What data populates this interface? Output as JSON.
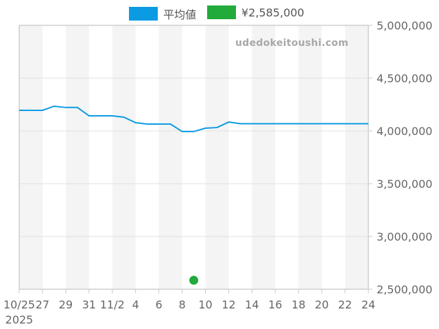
{
  "legend": {
    "items": [
      {
        "label": "平均値",
        "color": "#0a9be3"
      },
      {
        "label": "¥2,585,000",
        "color": "#22aa3a"
      }
    ]
  },
  "watermark": "udedokeitoushi.com",
  "chart_data": {
    "type": "line",
    "title": "",
    "xlabel": "",
    "ylabel": "",
    "x_tick_labels": [
      "10/25",
      "27",
      "29",
      "31",
      "11/2",
      "4",
      "6",
      "8",
      "10",
      "12",
      "14",
      "16",
      "18",
      "20",
      "22",
      "24"
    ],
    "x_year_label": "2025",
    "y_tick_labels": [
      "5,000,000",
      "4,500,000",
      "4,000,000",
      "3,500,000",
      "3,000,000",
      "2,500,000"
    ],
    "ylim": [
      2500000,
      5000000
    ],
    "xlim": [
      "2025-10-25",
      "2025-11-24"
    ],
    "grid": true,
    "legend_position": "top",
    "series": [
      {
        "name": "平均値",
        "type": "line",
        "color": "#0a9be3",
        "x": [
          "10/25",
          "10/26",
          "10/27",
          "10/28",
          "10/29",
          "10/30",
          "10/31",
          "11/1",
          "11/2",
          "11/3",
          "11/4",
          "11/5",
          "11/6",
          "11/7",
          "11/8",
          "11/9",
          "11/10",
          "11/11",
          "11/12",
          "11/13",
          "11/14",
          "11/15",
          "11/16",
          "11/17",
          "11/18",
          "11/19",
          "11/20",
          "11/21",
          "11/22",
          "11/23",
          "11/24"
        ],
        "values": [
          4195000,
          4195000,
          4195000,
          4234000,
          4222000,
          4222000,
          4143000,
          4143000,
          4143000,
          4130000,
          4078000,
          4065000,
          4065000,
          4065000,
          3994000,
          3994000,
          4026000,
          4032000,
          4084000,
          4068000,
          4068000,
          4068000,
          4068000,
          4068000,
          4068000,
          4068000,
          4068000,
          4068000,
          4068000,
          4068000,
          4068000
        ]
      },
      {
        "name": "¥2,585,000",
        "type": "scatter",
        "color": "#22aa3a",
        "x": [
          "11/9"
        ],
        "values": [
          2585000
        ]
      }
    ]
  }
}
